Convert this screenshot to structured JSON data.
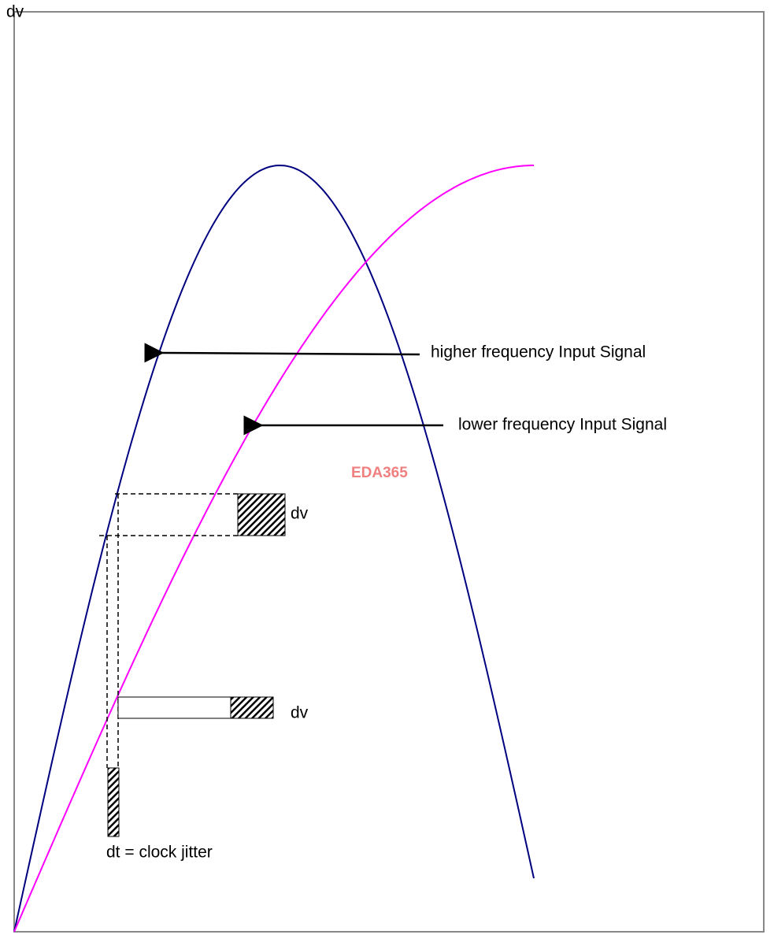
{
  "axis_label": "dv",
  "curves": [
    {
      "label": "higher frequency Input Signal"
    },
    {
      "label": "lower frequency Input Signal"
    }
  ],
  "watermark": "EDA365",
  "annotations": [
    "dv",
    "dv",
    "dt = clock jitter"
  ]
}
